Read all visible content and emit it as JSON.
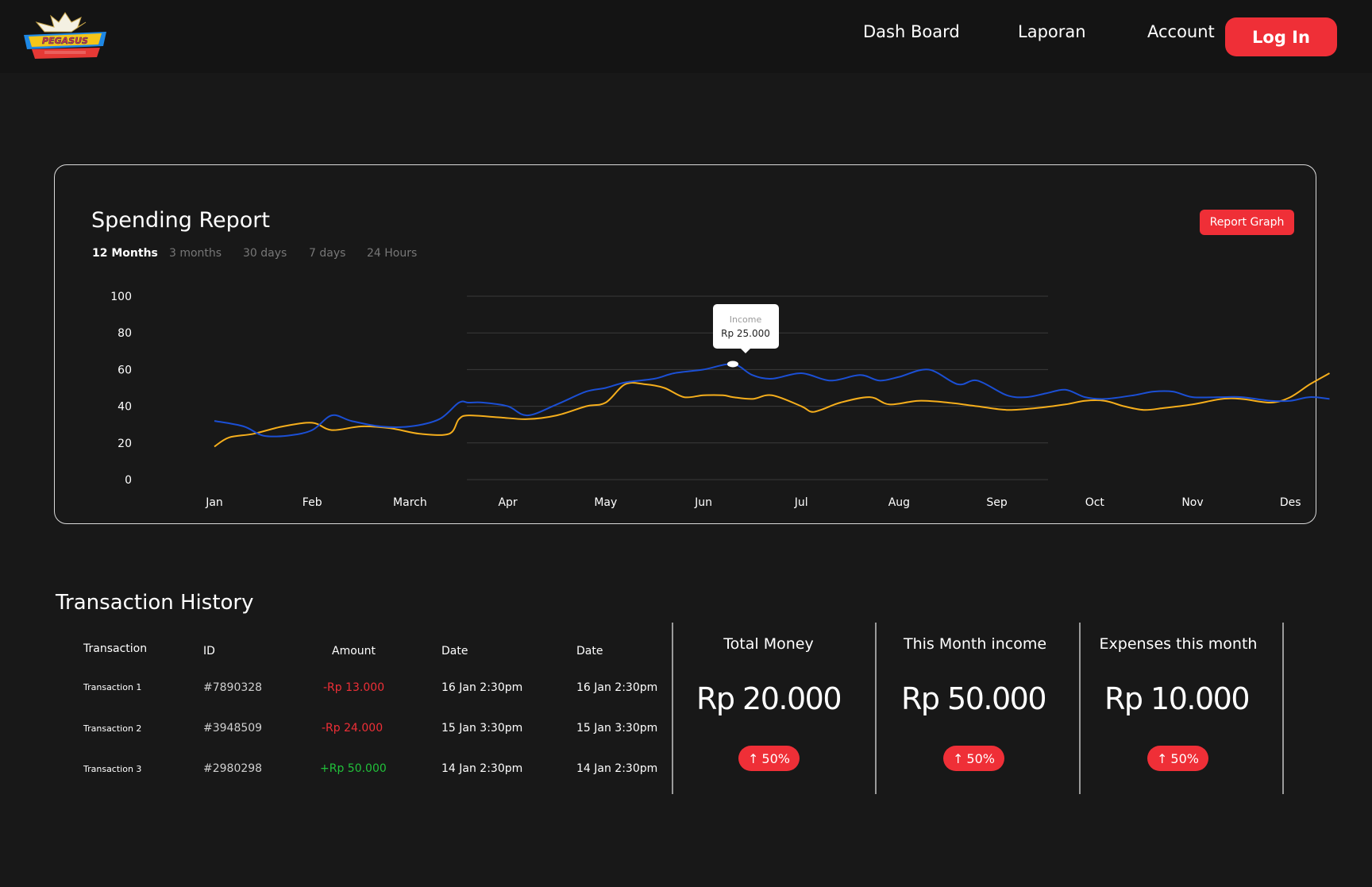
{
  "header": {
    "nav": [
      "Dash Board",
      "Laporan",
      "Account"
    ],
    "login_label": "Log In"
  },
  "colors": {
    "background": "#181818",
    "accent": "#ef2f37",
    "income_line": "#1b4fd4",
    "expense_line": "#f5ae1c",
    "positive": "#21c13a"
  },
  "report": {
    "title": "Spending Report",
    "tabs": [
      "12 Months",
      "3 months",
      "30 days",
      "7 days",
      "24 Hours"
    ],
    "active_tab": "12 Months",
    "button_label": "Report Graph",
    "tooltip": {
      "label": "Income",
      "value": "Rp 25.000"
    }
  },
  "chart_data": {
    "type": "line",
    "categories": [
      "Jan",
      "Feb",
      "March",
      "Apr",
      "May",
      "Jun",
      "Jul",
      "Aug",
      "Sep",
      "Oct",
      "Nov",
      "Des"
    ],
    "y_ticks": [
      "100",
      "80",
      "60",
      "40",
      "20",
      "0"
    ],
    "ylim": [
      0,
      100
    ],
    "grid": true,
    "series": [
      {
        "key": "income",
        "x": [
          0,
          0.3,
          0.5,
          0.75,
          1,
          1.2,
          1.4,
          1.7,
          2,
          2.3,
          2.5,
          2.6,
          2.75,
          3,
          3.2,
          3.5,
          3.8,
          4,
          4.2,
          4.5,
          4.7,
          5,
          5.3,
          5.5,
          5.7,
          6,
          6.3,
          6.6,
          6.8,
          7,
          7.3,
          7.6,
          7.8,
          8.1,
          8.3,
          8.5,
          8.7,
          8.9,
          9.1,
          9.4,
          9.6,
          9.8,
          10,
          10.3,
          10.5,
          10.8,
          11,
          11.2,
          11.4
        ],
        "values": [
          32,
          29,
          24,
          24,
          27,
          35,
          32,
          29,
          29,
          33,
          42,
          42,
          42,
          40,
          35,
          41,
          48,
          50,
          53,
          55,
          58,
          60,
          63,
          57,
          55,
          58,
          54,
          57,
          54,
          56,
          60,
          52,
          54,
          46,
          45,
          47,
          49,
          45,
          44,
          46,
          48,
          48,
          45,
          45,
          45,
          43,
          43,
          45,
          44
        ]
      },
      {
        "key": "expense",
        "x": [
          0,
          0.15,
          0.4,
          0.7,
          1,
          1.2,
          1.5,
          1.8,
          2.1,
          2.4,
          2.5,
          2.6,
          2.9,
          3.2,
          3.5,
          3.8,
          4,
          4.2,
          4.4,
          4.6,
          4.8,
          5,
          5.2,
          5.3,
          5.5,
          5.7,
          6,
          6.1,
          6.2,
          6.4,
          6.7,
          6.9,
          7.2,
          7.5,
          7.8,
          8.1,
          8.4,
          8.7,
          8.9,
          9.1,
          9.3,
          9.5,
          9.7,
          10,
          10.3,
          10.5,
          10.8,
          11,
          11.2,
          11.4
        ],
        "values": [
          18,
          23,
          25,
          29,
          31,
          27,
          29,
          28,
          25,
          25,
          33,
          35,
          34,
          33,
          35,
          40,
          42,
          52,
          52,
          50,
          45,
          46,
          46,
          45,
          44,
          46,
          40,
          37,
          38,
          42,
          45,
          41,
          43,
          42,
          40,
          38,
          39,
          41,
          43,
          43,
          40,
          38,
          39,
          41,
          44,
          44,
          42,
          45,
          52,
          58
        ]
      }
    ]
  },
  "transactions": {
    "title": "Transaction History",
    "columns": [
      "Transaction",
      "ID",
      "Amount",
      "Date",
      "Date"
    ],
    "rows": [
      {
        "name": "Transaction 1",
        "id": "#7890328",
        "amount": "-Rp 13.000",
        "date1": "16 Jan 2:30pm",
        "date2": "16 Jan 2:30pm"
      },
      {
        "name": "Transaction 2",
        "id": "#3948509",
        "amount": "-Rp 24.000",
        "date1": "15 Jan 3:30pm",
        "date2": "15 Jan 3:30pm"
      },
      {
        "name": "Transaction 3",
        "id": "#2980298",
        "amount": "+Rp 50.000",
        "date1": "14 Jan 2:30pm",
        "date2": "14 Jan 2:30pm"
      }
    ]
  },
  "stats": [
    {
      "title": "Total Money",
      "value": "Rp 20.000",
      "change": "50%",
      "change_icon": "arrow-up-icon"
    },
    {
      "title": "This Month income",
      "value": "Rp 50.000",
      "change": "50%",
      "change_icon": "arrow-up-icon"
    },
    {
      "title": "Expenses this month",
      "value": "Rp 10.000",
      "change": "50%",
      "change_icon": "arrow-up-icon"
    }
  ]
}
